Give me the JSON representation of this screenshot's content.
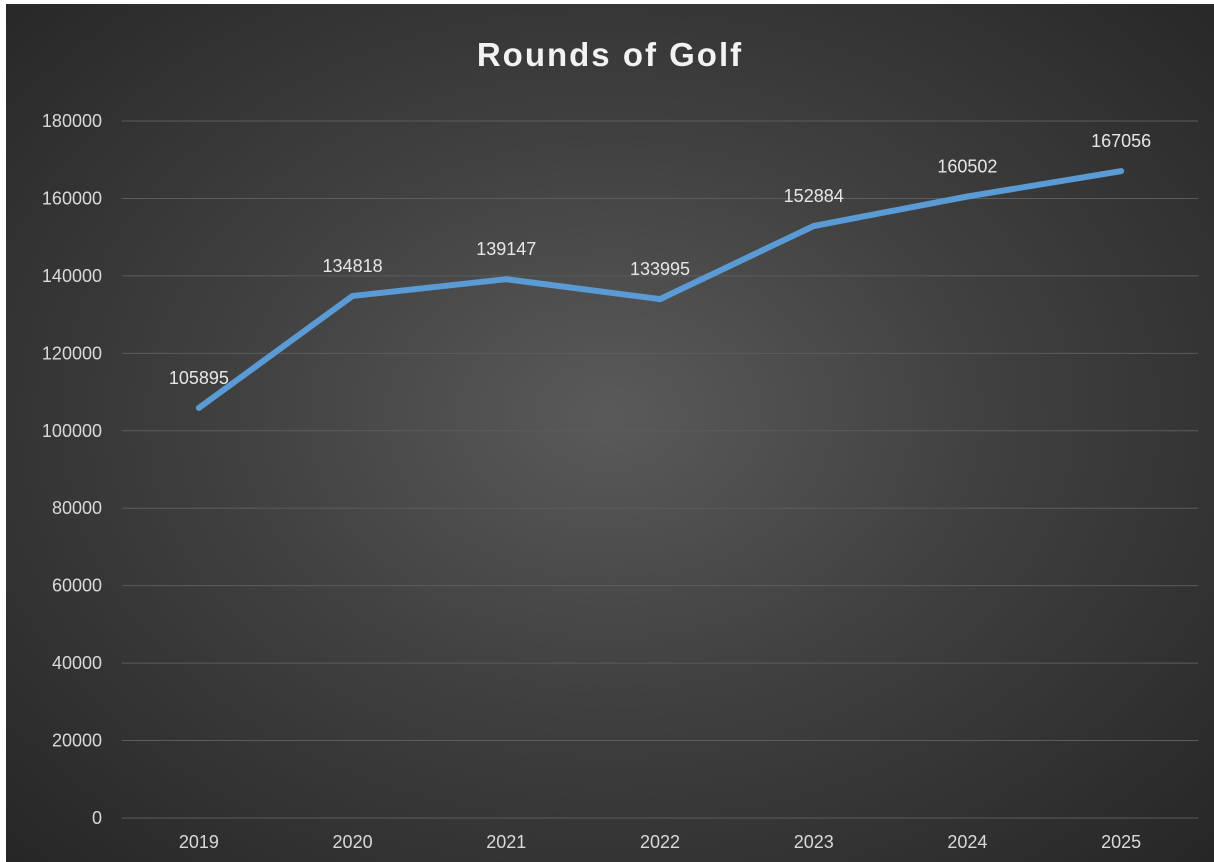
{
  "chart_data": {
    "type": "line",
    "title": "Rounds of Golf",
    "xlabel": "",
    "ylabel": "",
    "categories": [
      "2019",
      "2020",
      "2021",
      "2022",
      "2023",
      "2024",
      "2025"
    ],
    "series": [
      {
        "values": [
          105895,
          134818,
          139147,
          133995,
          152884,
          160502,
          167056
        ],
        "color": "#5b9bd5"
      }
    ],
    "ylim": [
      0,
      180000
    ],
    "yticks": [
      0,
      20000,
      40000,
      60000,
      80000,
      100000,
      120000,
      140000,
      160000,
      180000
    ],
    "grid": true,
    "legend": "none",
    "data_labels": true,
    "background": "#404040"
  }
}
